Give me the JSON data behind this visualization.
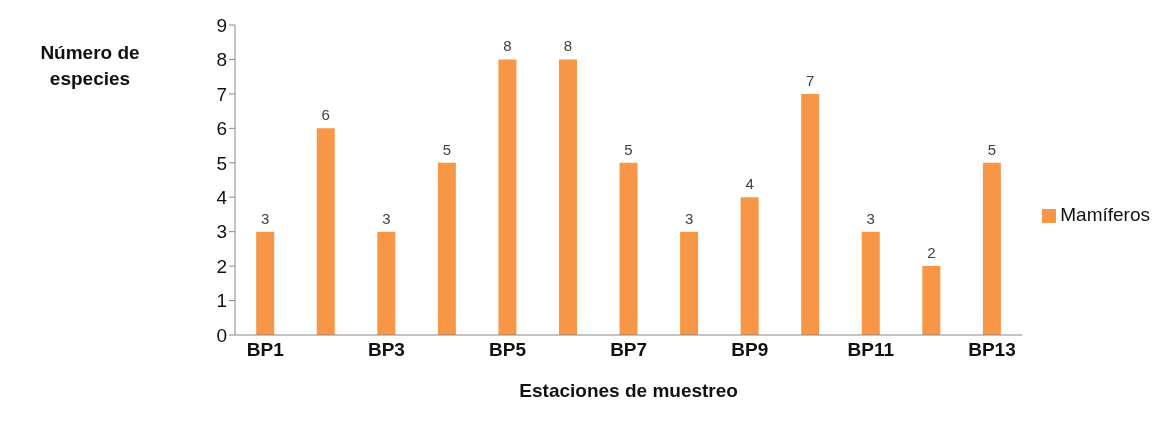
{
  "chart_data": {
    "type": "bar",
    "xlabel": "Estaciones de muestreo",
    "ylabel": "Número de especies",
    "categories": [
      "BP1",
      null,
      "BP3",
      null,
      "BP5",
      null,
      "BP7",
      null,
      "BP9",
      null,
      "BP11",
      null,
      "BP13"
    ],
    "series": [
      {
        "name": "Mamíferos",
        "color": "#f79646",
        "values": [
          3,
          6,
          3,
          5,
          8,
          8,
          5,
          3,
          4,
          7,
          3,
          2,
          5
        ]
      }
    ],
    "ylim": [
      0,
      9
    ],
    "yticks": [
      0,
      1,
      2,
      3,
      4,
      5,
      6,
      7,
      8,
      9
    ],
    "data_labels": true,
    "legend": "right",
    "grid": false
  }
}
